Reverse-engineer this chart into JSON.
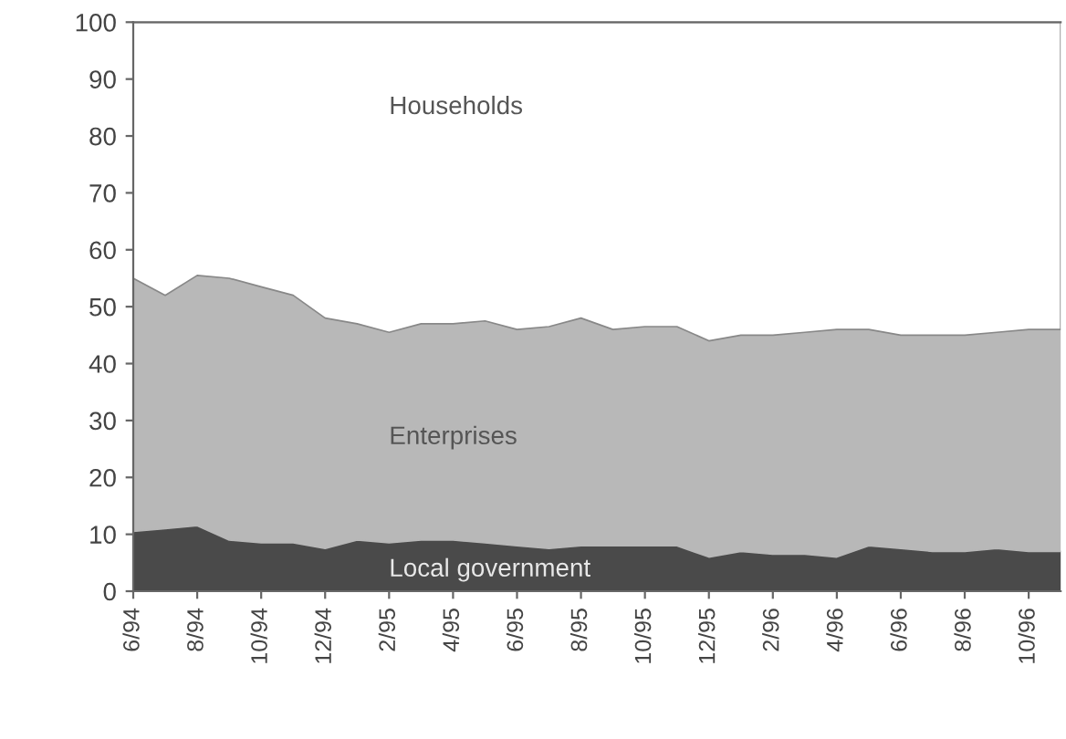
{
  "chart_data": {
    "type": "area",
    "stacked": true,
    "categories": [
      "6/94",
      null,
      "8/94",
      null,
      "10/94",
      null,
      "12/94",
      null,
      "2/95",
      null,
      "4/95",
      null,
      "6/95",
      null,
      "8/95",
      null,
      "10/95",
      null,
      "12/95",
      null,
      "2/96",
      null,
      "4/96",
      null,
      "6/96",
      null,
      "8/96",
      null,
      "10/96",
      null
    ],
    "series": [
      {
        "name": "Local government",
        "color": "#4a4a4a",
        "values": [
          10.5,
          11,
          11.5,
          9,
          8.5,
          8.5,
          7.5,
          9,
          8.5,
          9,
          9,
          8.5,
          8,
          7.5,
          8,
          8,
          8,
          8,
          6,
          7,
          6.5,
          6.5,
          6,
          8,
          7.5,
          7,
          7,
          7.5,
          7,
          7
        ]
      },
      {
        "name": "Enterprises",
        "color": "#b8b8b8",
        "values": [
          44.5,
          41,
          44,
          46,
          45,
          43.5,
          40.5,
          38,
          37,
          38,
          38,
          39,
          38,
          39,
          40,
          38,
          38.5,
          38.5,
          38,
          38,
          38.5,
          39,
          40,
          38,
          37.5,
          38,
          38,
          38,
          39,
          39
        ]
      },
      {
        "name": "Households",
        "color": "#ffffff",
        "values": [
          45,
          48,
          44.5,
          45,
          46.5,
          48,
          52,
          53,
          54.5,
          53,
          53,
          52.5,
          54,
          53.5,
          52,
          54,
          53.5,
          53.5,
          56,
          55,
          55,
          54.5,
          54,
          54,
          55,
          55,
          55,
          54.5,
          54,
          54
        ]
      }
    ],
    "ylim": [
      0,
      100
    ],
    "yticks": [
      0,
      10,
      20,
      30,
      40,
      50,
      60,
      70,
      80,
      90,
      100
    ],
    "grid": false,
    "legend": false
  }
}
